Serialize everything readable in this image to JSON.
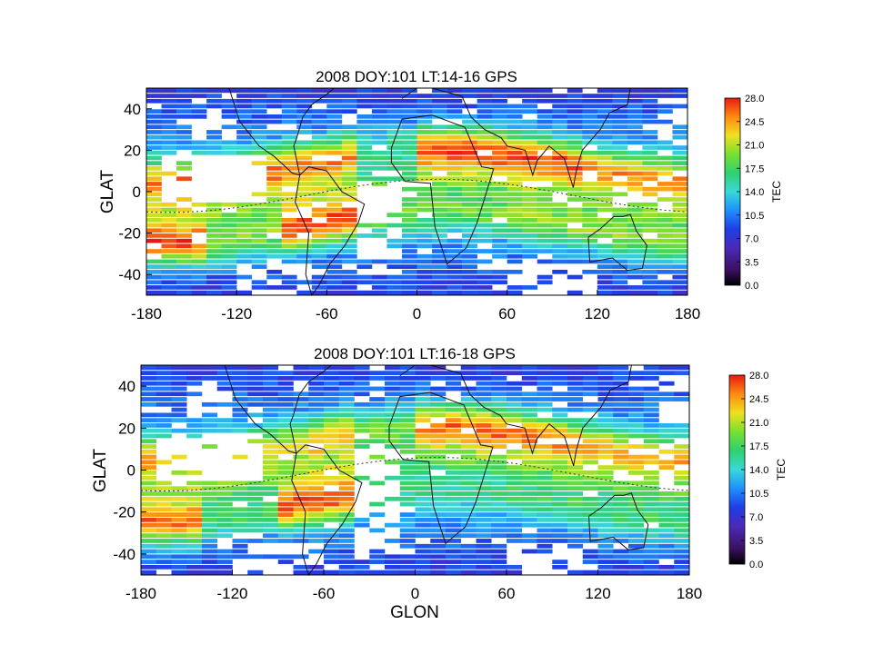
{
  "chart_data": [
    {
      "type": "heatmap",
      "title": "2008 DOY:101  LT:14-16 GPS",
      "xlabel": "",
      "ylabel": "GLAT",
      "x_ticks": [
        "-180",
        "-120",
        "-60",
        "0",
        "60",
        "120",
        "180"
      ],
      "y_ticks": [
        "40",
        "20",
        "0",
        "-20",
        "-40"
      ],
      "xlim": [
        -180,
        180
      ],
      "ylim": [
        -50,
        50
      ],
      "colorbar": {
        "label": "TEC",
        "ticks": [
          "28.0",
          "24.5",
          "21.0",
          "17.5",
          "14.0",
          "10.5",
          "7.0",
          "3.5",
          "0.0"
        ],
        "range": [
          0,
          28
        ]
      },
      "overlays": [
        "coastlines",
        "dip-equator"
      ],
      "features": {
        "crest_north": [
          {
            "lon_min": -170,
            "lon_max": -70,
            "value": 26
          },
          {
            "lon_min": -40,
            "lon_max": 0,
            "value": 16
          },
          {
            "lon_min": 0,
            "lon_max": 110,
            "value": 27
          },
          {
            "lon_min": 110,
            "lon_max": 180,
            "value": 25
          }
        ],
        "crest_south": [
          {
            "lon_min": -180,
            "lon_max": -140,
            "value": 27
          },
          {
            "lon_min": -90,
            "lon_max": -40,
            "value": 27
          },
          {
            "lon_min": -20,
            "lon_max": 60,
            "value": 19
          },
          {
            "lon_min": 60,
            "lon_max": 180,
            "value": 20
          }
        ]
      }
    },
    {
      "type": "heatmap",
      "title": "2008 DOY:101  LT:16-18 GPS",
      "xlabel": "GLON",
      "ylabel": "GLAT",
      "x_ticks": [
        "-180",
        "-120",
        "-60",
        "0",
        "60",
        "120",
        "180"
      ],
      "y_ticks": [
        "40",
        "20",
        "0",
        "-20",
        "-40"
      ],
      "xlim": [
        -180,
        180
      ],
      "ylim": [
        -50,
        50
      ],
      "colorbar": {
        "label": "TEC",
        "ticks": [
          "28.0",
          "24.5",
          "21.0",
          "17.5",
          "14.0",
          "10.5",
          "7.0",
          "3.5",
          "0.0"
        ],
        "range": [
          0,
          28
        ]
      },
      "overlays": [
        "coastlines",
        "dip-equator"
      ],
      "features": {
        "crest_north": [
          {
            "lon_min": -170,
            "lon_max": -70,
            "value": 22
          },
          {
            "lon_min": -40,
            "lon_max": 0,
            "value": 19
          },
          {
            "lon_min": 0,
            "lon_max": 110,
            "value": 26
          },
          {
            "lon_min": 110,
            "lon_max": 180,
            "value": 24
          }
        ],
        "crest_south": [
          {
            "lon_min": -180,
            "lon_max": -140,
            "value": 26
          },
          {
            "lon_min": -90,
            "lon_max": -40,
            "value": 27
          },
          {
            "lon_min": -20,
            "lon_max": 60,
            "value": 16
          },
          {
            "lon_min": 60,
            "lon_max": 180,
            "value": 17
          }
        ]
      }
    }
  ]
}
